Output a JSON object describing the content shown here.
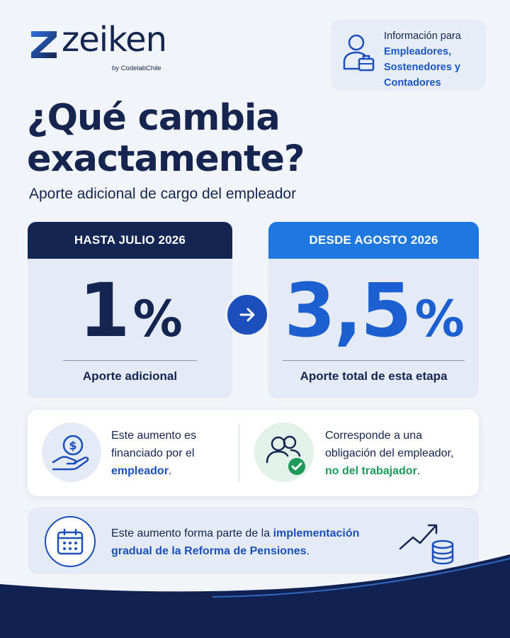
{
  "brand": {
    "name": "zeiken",
    "tagline": "by CodelabChile"
  },
  "audience": {
    "intro": "Información para",
    "groups": [
      "Empleadores,",
      "Sostenedores y",
      "Contadores"
    ]
  },
  "title": {
    "line1": "¿Qué cambia",
    "line2": "exactamente?"
  },
  "subtitle": "Aporte adicional de cargo del empleador",
  "comparison": {
    "before": {
      "header": "HASTA JULIO 2026",
      "value": "1",
      "unit": "%",
      "caption": "Aporte adicional"
    },
    "after": {
      "header": "DESDE AGOSTO 2026",
      "value": "3,5",
      "unit": "%",
      "caption": "Aporte total de esta etapa"
    }
  },
  "info": {
    "left": {
      "text_1": "Este aumento es",
      "text_2": "financiado por el",
      "emphasis": "empleador",
      "suffix": "."
    },
    "right": {
      "text_1": "Corresponde a una",
      "text_2": "obligación del empleador,",
      "emphasis": "no del trabajador",
      "suffix": "."
    }
  },
  "reform": {
    "prefix": "Este aumento forma parte de la ",
    "emphasis": "implementación gradual de la Reforma de Pensiones",
    "suffix": "."
  },
  "colors": {
    "navy": "#142552",
    "blue": "#1f78e0",
    "accent_blue": "#1b4fb8",
    "green": "#1d9a5a",
    "background": "#f1f4f9"
  }
}
